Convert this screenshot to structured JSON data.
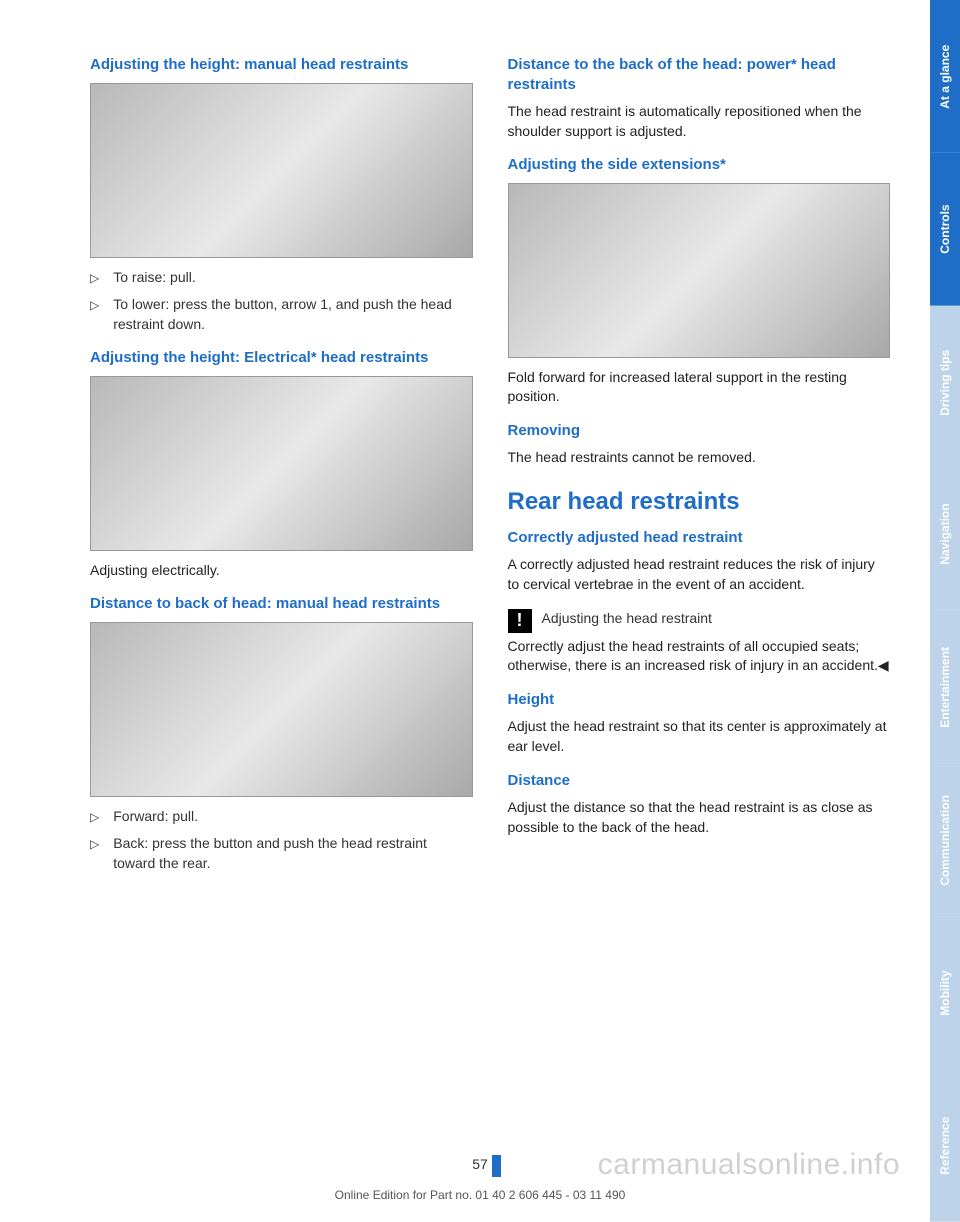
{
  "left_column": {
    "section1": {
      "heading": "Adjusting the height: manual head restraints",
      "bullets": [
        "To raise: pull.",
        "To lower: press the button, arrow 1, and push the head restraint down."
      ]
    },
    "section2": {
      "heading": "Adjusting the height: Electrical* head restraints",
      "caption": "Adjusting electrically."
    },
    "section3": {
      "heading": "Distance to back of head: manual head restraints",
      "bullets": [
        "Forward: pull.",
        "Back: press the button and push the head restraint toward the rear."
      ]
    }
  },
  "right_column": {
    "section1": {
      "heading": "Distance to the back of the head: power* head restraints",
      "text": "The head restraint is automatically repositioned when the shoulder support is adjusted."
    },
    "section2": {
      "heading": "Adjusting the side extensions*",
      "text": "Fold forward for increased lateral support in the resting position."
    },
    "section3": {
      "heading": "Removing",
      "text": "The head restraints cannot be removed."
    },
    "section4": {
      "heading_large": "Rear head restraints"
    },
    "section5": {
      "heading": "Correctly adjusted head restraint",
      "text": "A correctly adjusted head restraint reduces the risk of injury to cervical vertebrae in the event of an accident.",
      "warning_title": "Adjusting the head restraint",
      "warning_text": "Correctly adjust the head restraints of all occupied seats; otherwise, there is an increased risk of injury in an accident.◀"
    },
    "section6": {
      "heading": "Height",
      "text": "Adjust the head restraint so that its center is approximately at ear level."
    },
    "section7": {
      "heading": "Distance",
      "text": "Adjust the distance so that the head restraint is as close as possible to the back of the head."
    }
  },
  "tabs": [
    {
      "label": "At a glance",
      "color": "#1e6ec7"
    },
    {
      "label": "Controls",
      "color": "#1e6ec7"
    },
    {
      "label": "Driving tips",
      "color": "#bcd3ea"
    },
    {
      "label": "Navigation",
      "color": "#bcd3ea"
    },
    {
      "label": "Entertainment",
      "color": "#bcd3ea"
    },
    {
      "label": "Communication",
      "color": "#bcd3ea"
    },
    {
      "label": "Mobility",
      "color": "#bcd3ea"
    },
    {
      "label": "Reference",
      "color": "#bcd3ea"
    }
  ],
  "page_number": "57",
  "footer": "Online Edition for Part no. 01 40 2 606 445 - 03 11 490",
  "watermark": "carmanualsonline.info",
  "bullet_marker": "▷",
  "warning_glyph": "!"
}
